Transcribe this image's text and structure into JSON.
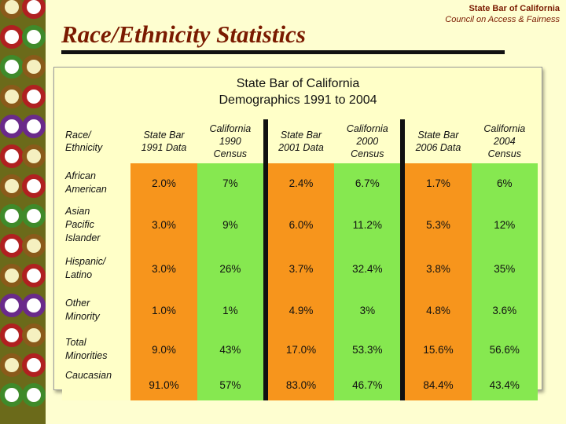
{
  "header": {
    "org": "State Bar of California",
    "council": "Council on Access & Fairness",
    "title": "Race/Ethnicity Statistics"
  },
  "panel": {
    "line1": "State Bar of California",
    "line2": "Demographics 1991 to 2004"
  },
  "table": {
    "columns": [
      [
        "Race/",
        "Ethnicity"
      ],
      [
        "State Bar",
        "1991 Data"
      ],
      [
        "California",
        "1990",
        "Census"
      ],
      [
        "State Bar",
        "2001 Data"
      ],
      [
        "California",
        "2000",
        "Census"
      ],
      [
        "State Bar",
        "2006 Data"
      ],
      [
        "California",
        "2004",
        "Census"
      ]
    ],
    "rows": [
      {
        "label": [
          "African",
          "American"
        ],
        "values": [
          "2.0%",
          "7%",
          "2.4%",
          "6.7%",
          "1.7%",
          "6%"
        ]
      },
      {
        "label": [
          "Asian",
          "Pacific",
          "Islander"
        ],
        "values": [
          "3.0%",
          "9%",
          "6.0%",
          "11.2%",
          "5.3%",
          "12%"
        ]
      },
      {
        "label": [
          "Hispanic/",
          "Latino"
        ],
        "values": [
          "3.0%",
          "26%",
          "3.7%",
          "32.4%",
          "3.8%",
          "35%"
        ]
      },
      {
        "label": [
          "Other",
          "Minority"
        ],
        "values": [
          "1.0%",
          "1%",
          "4.9%",
          "3%",
          "4.8%",
          "3.6%"
        ]
      },
      {
        "label": [
          "Total",
          "Minorities"
        ],
        "values": [
          "9.0%",
          "43%",
          "17.0%",
          "53.3%",
          "15.6%",
          "56.6%"
        ]
      },
      {
        "label": [
          "Caucasian"
        ],
        "values": [
          "91.0%",
          "57%",
          "83.0%",
          "46.7%",
          "84.4%",
          "43.4%"
        ]
      }
    ]
  },
  "colors": {
    "orange": "#f7951c",
    "green": "#86e850",
    "title": "#7a1a00"
  }
}
